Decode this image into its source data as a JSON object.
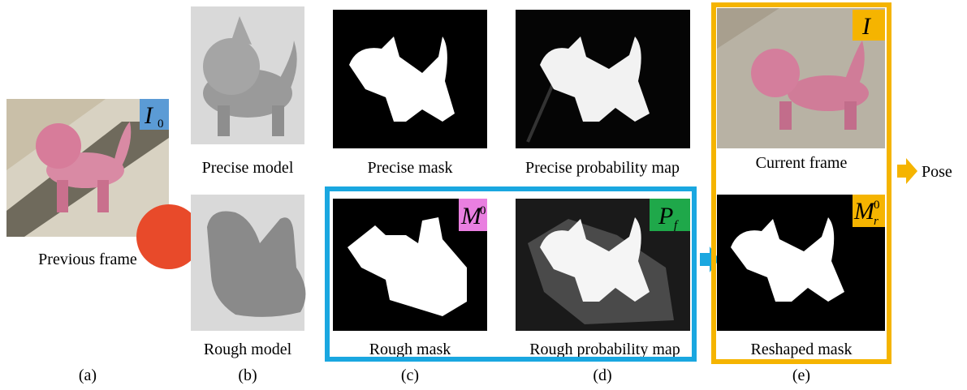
{
  "figure": {
    "letters": [
      "(a)",
      "(b)",
      "(c)",
      "(d)",
      "(e)"
    ],
    "captions": [
      "Previous frame",
      "Precise model",
      "Rough model",
      "Precise mask",
      "Rough mask",
      "Precise probability map",
      "Rough probability map",
      "Current frame",
      "Reshaped mask"
    ],
    "symbols": [
      {
        "base": "I",
        "sub": "0"
      },
      {
        "base": "M",
        "sup": "0"
      },
      {
        "base": "P",
        "sub": "f"
      },
      {
        "base": "M",
        "sub": "r",
        "sup": "0"
      },
      {
        "base": "I"
      }
    ],
    "output": "Pose"
  }
}
